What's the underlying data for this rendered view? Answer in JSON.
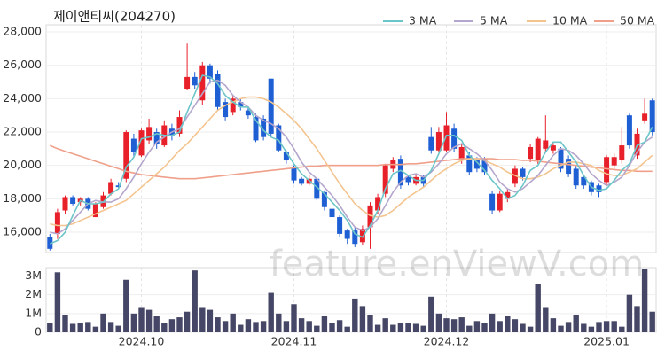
{
  "chart_data": [
    {
      "type": "candlestick",
      "title": "제이앤티씨(204270)",
      "watermark": "feature.enViewV.com",
      "up_color": "#e8202a",
      "down_color": "#1f5fd4",
      "grid": true,
      "legend": "top-right",
      "ylim": [
        14800,
        28400
      ],
      "yticks": [
        {
          "value": 16000,
          "label": "16,000"
        },
        {
          "value": 18000,
          "label": "18,000"
        },
        {
          "value": 20000,
          "label": "20,000"
        },
        {
          "value": 22000,
          "label": "22,000"
        },
        {
          "value": 24000,
          "label": "24,000"
        },
        {
          "value": 26000,
          "label": "26,000"
        },
        {
          "value": 28000,
          "label": "28,000"
        }
      ],
      "open": [
        15700,
        15900,
        17300,
        18100,
        17800,
        18000,
        16900,
        17500,
        18300,
        18800,
        19200,
        21600,
        20600,
        21500,
        22000,
        21200,
        22200,
        21900,
        24600,
        25300,
        23900,
        26000,
        25500,
        23800,
        23200,
        23800,
        23300,
        22900,
        22800,
        25200,
        22400,
        20800,
        19900,
        19200,
        18900,
        19200,
        18400,
        17400,
        16900,
        16100,
        16100,
        15400,
        16300,
        17300,
        18300,
        19800,
        20400,
        19300,
        18900,
        19300,
        21700,
        20900,
        20900,
        22200,
        20300,
        20600,
        20300,
        20400,
        18300,
        17300,
        18000,
        18900,
        19800,
        20400,
        20300,
        21000,
        20900,
        21000,
        20400,
        19800,
        19300,
        19000,
        18800,
        19000,
        20000,
        20300,
        23000,
        20600,
        22700,
        23900
      ],
      "high": [
        15900,
        17400,
        18200,
        18200,
        18100,
        18100,
        17800,
        18400,
        19200,
        19000,
        22100,
        21900,
        22200,
        22800,
        22200,
        22700,
        22500,
        23300,
        27300,
        25600,
        26200,
        26100,
        25700,
        24000,
        24200,
        24000,
        23500,
        23100,
        23000,
        25200,
        22500,
        20900,
        20000,
        19300,
        19400,
        19300,
        18500,
        17500,
        17000,
        16200,
        16300,
        16400,
        17800,
        18300,
        20100,
        20500,
        20600,
        19400,
        19500,
        19400,
        22300,
        22300,
        23200,
        22500,
        21300,
        20800,
        20500,
        20500,
        18500,
        18500,
        18600,
        20000,
        19900,
        21300,
        21700,
        23000,
        21400,
        21100,
        20600,
        20000,
        19400,
        19100,
        18900,
        20600,
        20700,
        22300,
        23100,
        22200,
        24000,
        24000
      ],
      "low": [
        14900,
        15600,
        17100,
        17600,
        17600,
        17300,
        16900,
        17400,
        18200,
        18600,
        19000,
        20500,
        20500,
        21300,
        21000,
        21100,
        21500,
        21700,
        24500,
        24600,
        23600,
        24900,
        23300,
        22700,
        23000,
        23300,
        22800,
        21400,
        21500,
        21700,
        20800,
        20100,
        18900,
        18800,
        18800,
        17900,
        17300,
        16700,
        15700,
        15300,
        15100,
        15200,
        15000,
        17100,
        18100,
        19600,
        18600,
        18800,
        18800,
        18700,
        20700,
        20800,
        20800,
        20800,
        20100,
        19400,
        19600,
        19400,
        17100,
        17200,
        17800,
        18700,
        19100,
        20200,
        20100,
        20800,
        20700,
        19600,
        19300,
        18600,
        18600,
        18200,
        18100,
        18800,
        19800,
        20100,
        21000,
        20400,
        22500,
        21800
      ],
      "close": [
        15000,
        17200,
        18100,
        17700,
        18000,
        17400,
        17700,
        18200,
        19000,
        18700,
        22000,
        20800,
        22100,
        22300,
        21300,
        22400,
        21800,
        22900,
        25300,
        24800,
        26000,
        25200,
        23500,
        22900,
        24000,
        23500,
        23000,
        21500,
        21700,
        21900,
        20900,
        20300,
        19100,
        18900,
        19200,
        18000,
        17500,
        16900,
        15900,
        15600,
        15300,
        16200,
        17600,
        18100,
        20000,
        20300,
        18800,
        19000,
        19300,
        18900,
        20900,
        22000,
        22400,
        21000,
        21100,
        19600,
        19800,
        19600,
        17300,
        18300,
        18400,
        19800,
        19300,
        21100,
        21600,
        21500,
        21200,
        19800,
        19500,
        18800,
        18800,
        18400,
        18400,
        20500,
        20500,
        21200,
        21200,
        21900,
        23100,
        22000
      ],
      "series": [
        {
          "name": "3 MA",
          "color": "#6cc5c8",
          "values": [
            15300,
            15500,
            16000,
            17000,
            17900,
            17700,
            17700,
            17800,
            18300,
            18600,
            19900,
            20500,
            21600,
            21700,
            21900,
            21800,
            21800,
            22000,
            23200,
            24300,
            25400,
            25300,
            24900,
            24200,
            23800,
            23500,
            23500,
            22700,
            22100,
            21700,
            21500,
            20800,
            20100,
            19500,
            19100,
            18700,
            18300,
            17800,
            17300,
            16700,
            15900,
            15700,
            16400,
            17300,
            18600,
            19500,
            19700,
            19400,
            19100,
            19100,
            19700,
            20700,
            21800,
            21800,
            21500,
            20600,
            20200,
            19700,
            19100,
            18600,
            18000,
            18200,
            18800,
            19700,
            20000,
            20800,
            21400,
            21400,
            20800,
            20200,
            19400,
            18700,
            18500,
            18600,
            19100,
            19700,
            20100,
            21200,
            21400,
            22300
          ]
        },
        {
          "name": "5 MA",
          "color": "#b4a6cc",
          "values": [
            16000,
            15900,
            16200,
            16700,
            17200,
            17700,
            17900,
            17800,
            17800,
            18000,
            18600,
            19300,
            20100,
            20800,
            21400,
            21700,
            22000,
            22200,
            22900,
            23600,
            24300,
            25000,
            25100,
            24800,
            24200,
            23800,
            23500,
            23000,
            22700,
            22500,
            22200,
            21700,
            21000,
            20200,
            19600,
            19200,
            18700,
            18200,
            17600,
            16900,
            16300,
            16100,
            16300,
            16800,
            17600,
            18400,
            19000,
            19400,
            19500,
            19300,
            19600,
            20100,
            20700,
            21100,
            21300,
            21000,
            20700,
            20300,
            19700,
            19000,
            18600,
            18400,
            18600,
            19000,
            19400,
            20000,
            20600,
            21000,
            20900,
            20600,
            20100,
            19500,
            19100,
            18800,
            19000,
            19300,
            20000,
            20800,
            21400,
            21700
          ]
        },
        {
          "name": "10 MA",
          "color": "#f4c48f",
          "values": [
            16500,
            16400,
            16400,
            16500,
            16700,
            16900,
            17100,
            17300,
            17500,
            17700,
            17900,
            18300,
            18700,
            19100,
            19500,
            19900,
            20400,
            20900,
            21300,
            21800,
            22300,
            22800,
            23300,
            23600,
            23800,
            24000,
            24100,
            24100,
            24000,
            23800,
            23500,
            23100,
            22700,
            22200,
            21600,
            21000,
            20300,
            19600,
            18900,
            18300,
            17700,
            17300,
            17000,
            16900,
            17000,
            17300,
            17700,
            18100,
            18400,
            18700,
            19100,
            19500,
            19800,
            20100,
            20300,
            20400,
            20400,
            20300,
            20100,
            19900,
            19600,
            19400,
            19200,
            19200,
            19300,
            19500,
            19800,
            20000,
            20200,
            20200,
            20100,
            20000,
            19700,
            19500,
            19400,
            19400,
            19600,
            19800,
            20200,
            20600
          ]
        },
        {
          "name": "50 MA",
          "color": "#f0a08a",
          "values": [
            21200,
            21000,
            20850,
            20700,
            20550,
            20400,
            20250,
            20100,
            19950,
            19800,
            19650,
            19550,
            19450,
            19400,
            19350,
            19300,
            19250,
            19200,
            19200,
            19200,
            19250,
            19300,
            19350,
            19400,
            19450,
            19500,
            19550,
            19600,
            19650,
            19700,
            19750,
            19800,
            19850,
            19900,
            19950,
            19950,
            20000,
            20000,
            20000,
            20000,
            20000,
            20000,
            20000,
            20000,
            20050,
            20050,
            20050,
            20100,
            20100,
            20150,
            20200,
            20250,
            20300,
            20350,
            20400,
            20400,
            20400,
            20400,
            20400,
            20350,
            20350,
            20350,
            20300,
            20300,
            20250,
            20200,
            20150,
            20100,
            20050,
            20000,
            19950,
            19900,
            19850,
            19800,
            19750,
            19700,
            19700,
            19650,
            19650,
            19650
          ]
        }
      ]
    },
    {
      "type": "bar",
      "color": "#464766",
      "grid": true,
      "ylim": [
        0,
        3450000
      ],
      "yticks": [
        0,
        {
          "value": 1000000,
          "label": "1M"
        },
        {
          "value": 2000000,
          "label": "2M"
        },
        {
          "value": 3000000,
          "label": "3M"
        }
      ],
      "categories": [
        null,
        null,
        null,
        null,
        null,
        null,
        null,
        null,
        null,
        null,
        null,
        null,
        "2024.10",
        null,
        null,
        null,
        null,
        null,
        null,
        null,
        null,
        null,
        null,
        null,
        null,
        null,
        null,
        null,
        null,
        null,
        null,
        null,
        "2024.11",
        null,
        null,
        null,
        null,
        null,
        null,
        null,
        null,
        null,
        null,
        null,
        null,
        null,
        null,
        null,
        null,
        null,
        null,
        null,
        "2024.12",
        null,
        null,
        null,
        null,
        null,
        null,
        null,
        null,
        null,
        null,
        null,
        null,
        null,
        null,
        null,
        null,
        null,
        null,
        null,
        null,
        "2025.01",
        null,
        null,
        null,
        null,
        null,
        null
      ],
      "values": [
        500000,
        3200000,
        900000,
        450000,
        500000,
        550000,
        300000,
        1000000,
        550000,
        350000,
        2800000,
        1000000,
        1300000,
        1200000,
        850000,
        500000,
        700000,
        800000,
        1100000,
        3300000,
        1300000,
        1200000,
        800000,
        600000,
        1000000,
        400000,
        700000,
        550000,
        600000,
        2100000,
        1000000,
        600000,
        1500000,
        750000,
        600000,
        350000,
        850000,
        500000,
        650000,
        300000,
        1800000,
        1400000,
        900000,
        400000,
        750000,
        400000,
        500000,
        500000,
        450000,
        350000,
        1900000,
        1000000,
        750000,
        700000,
        800000,
        350000,
        600000,
        500000,
        1000000,
        600000,
        850000,
        700000,
        450000,
        300000,
        2600000,
        1300000,
        750000,
        350000,
        550000,
        900000,
        450000,
        300000,
        550000,
        600000,
        600000,
        300000,
        2000000,
        1400000,
        3400000,
        1100000
      ]
    }
  ]
}
